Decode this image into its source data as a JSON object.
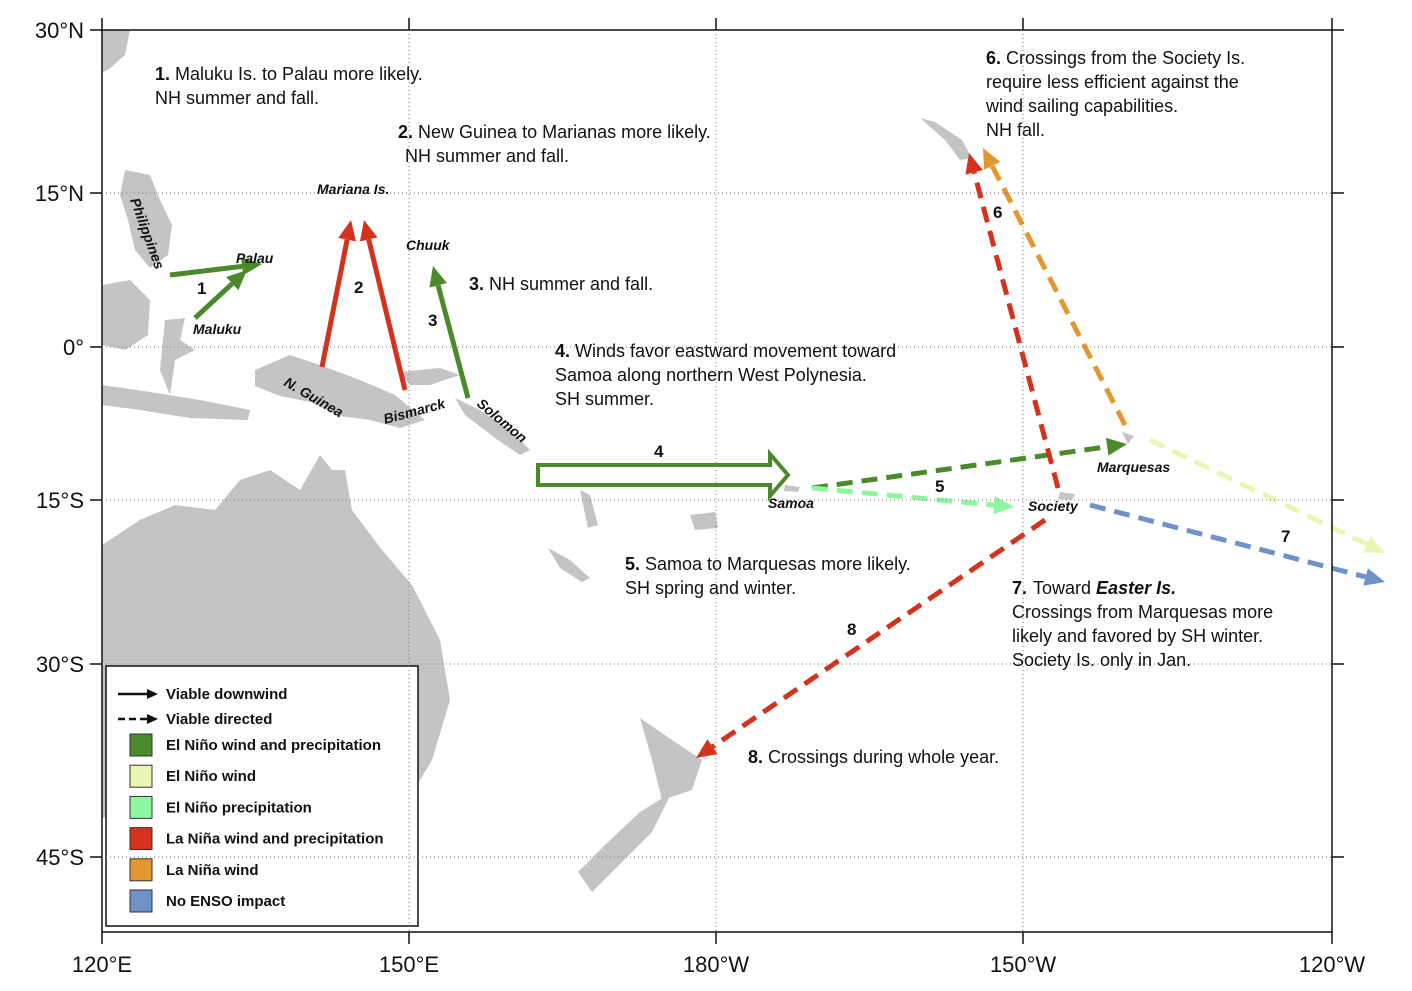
{
  "map": {
    "lat_labels": [
      "30°N",
      "15°N",
      "0°",
      "15°S",
      "30°S",
      "45°S"
    ],
    "lon_labels": [
      "120°E",
      "150°E",
      "180°W",
      "150°W",
      "120°W"
    ],
    "places": [
      "Philippines",
      "Palau",
      "Maluku",
      "Mariana Is.",
      "Chuuk",
      "N. Guinea",
      "Bismarck",
      "Solomon",
      "Samoa",
      "Marquesas",
      "Society"
    ],
    "route_numbers": [
      "1",
      "2",
      "3",
      "4",
      "5",
      "6",
      "7",
      "8"
    ],
    "notes": [
      {
        "number": "1.",
        "lines": [
          "Maluku Is. to Palau  more  likely.",
          "NH summer and fall."
        ]
      },
      {
        "number": "2.",
        "lines": [
          "New Guinea to Marianas more likely.",
          "NH summer and fall."
        ]
      },
      {
        "number": "3.",
        "lines": [
          "NH summer and fall."
        ]
      },
      {
        "number": "4.",
        "lines": [
          "Winds favor eastward movement toward",
          "Samoa along northern West Polynesia.",
          "SH summer."
        ]
      },
      {
        "number": "5.",
        "lines": [
          "Samoa to Marquesas more likely.",
          "SH spring and winter."
        ]
      },
      {
        "number": "6.",
        "lines": [
          "Crossings from the Society Is.",
          "require less efficient against the",
          "wind sailing  capabilities.",
          "NH fall."
        ]
      },
      {
        "number": "7.",
        "lead": "Toward",
        "emphasis": "Easter Is.",
        "lines": [
          "Crossings from Marquesas more",
          "likely and favored by SH winter.",
          "Society Is.  only in Jan."
        ]
      },
      {
        "number": "8.",
        "lines": [
          "Crossings during whole year."
        ]
      }
    ]
  },
  "legend": {
    "lines": [
      "Viable downwind",
      "Viable directed"
    ],
    "colors": [
      {
        "label": "El Niño wind and precipitation",
        "color": "#4a8a2a"
      },
      {
        "label": "El Niño wind",
        "color": "#e8f8b4"
      },
      {
        "label": "El Niño precipitation",
        "color": "#8ef5a0"
      },
      {
        "label": "La Niña wind and precipitation",
        "color": "#d4321c"
      },
      {
        "label": "La Niña wind",
        "color": "#e3972f"
      },
      {
        "label": "No ENSO impact",
        "color": "#6f93c9"
      }
    ]
  }
}
